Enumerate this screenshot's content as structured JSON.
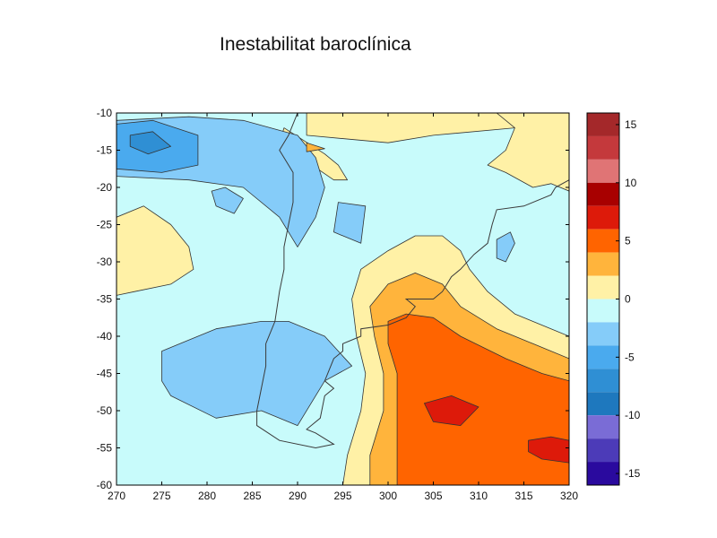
{
  "chart_data": {
    "type": "heatmap",
    "title": "Inestabilitat baroclínica",
    "xlabel": "",
    "ylabel": "",
    "xlim": [
      270,
      320
    ],
    "ylim": [
      -60,
      -10
    ],
    "xticks": [
      "270",
      "275",
      "280",
      "285",
      "290",
      "295",
      "300",
      "305",
      "310",
      "315",
      "320"
    ],
    "yticks": [
      "-10",
      "-15",
      "-20",
      "-25",
      "-30",
      "-35",
      "-40",
      "-45",
      "-50",
      "-55",
      "-60"
    ],
    "colorbar": {
      "ticks": [
        "15",
        "10",
        "5",
        "0",
        "-5",
        "-10",
        "-15"
      ],
      "tick_values": [
        15,
        10,
        5,
        0,
        -5,
        -10,
        -15
      ],
      "range": [
        -16,
        16
      ],
      "bands": [
        {
          "from": 14,
          "to": 16,
          "color": "#a4282a"
        },
        {
          "from": 12,
          "to": 14,
          "color": "#c4393c"
        },
        {
          "from": 10,
          "to": 12,
          "color": "#e07475"
        },
        {
          "from": 8,
          "to": 10,
          "color": "#a80000"
        },
        {
          "from": 6,
          "to": 8,
          "color": "#dd1a0a"
        },
        {
          "from": 4,
          "to": 6,
          "color": "#ff6400"
        },
        {
          "from": 2,
          "to": 4,
          "color": "#ffb43c"
        },
        {
          "from": 0,
          "to": 2,
          "color": "#fff1a6"
        },
        {
          "from": -2,
          "to": 0,
          "color": "#c8fbfb"
        },
        {
          "from": -4,
          "to": -2,
          "color": "#85ccf9"
        },
        {
          "from": -6,
          "to": -4,
          "color": "#4aaaee"
        },
        {
          "from": -8,
          "to": -6,
          "color": "#2f8fd4"
        },
        {
          "from": -10,
          "to": -8,
          "color": "#1e78be"
        },
        {
          "from": -12,
          "to": -10,
          "color": "#7a6cd6"
        },
        {
          "from": -14,
          "to": -12,
          "color": "#4c3bb8"
        },
        {
          "from": -16,
          "to": -14,
          "color": "#2a0a9e"
        }
      ]
    },
    "regions": [
      {
        "level": "-2 to 0",
        "color": "#c8fbfb",
        "points": [
          [
            270,
            -10
          ],
          [
            320,
            -10
          ],
          [
            320,
            -60
          ],
          [
            270,
            -60
          ]
        ]
      },
      {
        "level": "0 to 2",
        "color": "#fff1a6",
        "points": [
          [
            291,
            -10
          ],
          [
            313,
            -10
          ],
          [
            314,
            -12
          ],
          [
            305,
            -13
          ],
          [
            300,
            -14
          ],
          [
            291,
            -13
          ]
        ]
      },
      {
        "level": "0 to 2",
        "color": "#fff1a6",
        "points": [
          [
            312,
            -10
          ],
          [
            320,
            -10
          ],
          [
            320,
            -20.5
          ],
          [
            318,
            -19.5
          ],
          [
            316,
            -20
          ],
          [
            313,
            -18
          ],
          [
            311,
            -17
          ],
          [
            313,
            -15
          ],
          [
            314,
            -12
          ]
        ]
      },
      {
        "level": "0 to 2",
        "color": "#fff1a6",
        "points": [
          [
            270,
            -24
          ],
          [
            273,
            -22.5
          ],
          [
            276,
            -25
          ],
          [
            278,
            -28
          ],
          [
            278.5,
            -31
          ],
          [
            276,
            -33
          ],
          [
            272,
            -34
          ],
          [
            270,
            -34.5
          ]
        ]
      },
      {
        "level": "0 to 2",
        "color": "#fff1a6",
        "points": [
          [
            288.5,
            -12
          ],
          [
            293,
            -15.5
          ],
          [
            294.5,
            -17
          ],
          [
            295.5,
            -19
          ],
          [
            294,
            -19
          ],
          [
            291,
            -16.5
          ],
          [
            288,
            -14
          ]
        ]
      },
      {
        "level": "0 to 2",
        "color": "#fff1a6",
        "points": [
          [
            295,
            -60
          ],
          [
            295.5,
            -56
          ],
          [
            297,
            -50
          ],
          [
            297.5,
            -45
          ],
          [
            296.5,
            -40
          ],
          [
            296,
            -35
          ],
          [
            297,
            -31
          ],
          [
            300,
            -28.5
          ],
          [
            303,
            -26.5
          ],
          [
            306,
            -26.5
          ],
          [
            308,
            -28.5
          ],
          [
            309,
            -31
          ],
          [
            311,
            -34
          ],
          [
            314,
            -37
          ],
          [
            318,
            -39
          ],
          [
            320,
            -40
          ],
          [
            320,
            -60
          ]
        ]
      },
      {
        "level": "-4 to -2",
        "color": "#85ccf9",
        "points": [
          [
            270,
            -11
          ],
          [
            278,
            -10.5
          ],
          [
            284,
            -11
          ],
          [
            290,
            -13
          ],
          [
            292,
            -16
          ],
          [
            293,
            -20
          ],
          [
            292,
            -24
          ],
          [
            290,
            -28
          ],
          [
            288,
            -24
          ],
          [
            284,
            -20
          ],
          [
            278,
            -19
          ],
          [
            270,
            -18.5
          ]
        ]
      },
      {
        "level": "-4 to -2",
        "color": "#85ccf9",
        "points": [
          [
            275,
            -42
          ],
          [
            281,
            -39
          ],
          [
            286,
            -38
          ],
          [
            289,
            -38
          ],
          [
            293,
            -40
          ],
          [
            296,
            -44
          ],
          [
            293,
            -46
          ],
          [
            290,
            -52
          ],
          [
            286,
            -50
          ],
          [
            281,
            -51
          ],
          [
            276,
            -48
          ],
          [
            275,
            -46
          ]
        ]
      },
      {
        "level": "-4 to -2",
        "color": "#85ccf9",
        "points": [
          [
            294.5,
            -22
          ],
          [
            297.5,
            -22.5
          ],
          [
            297,
            -27.5
          ],
          [
            294,
            -26
          ]
        ]
      },
      {
        "level": "-4 to -2",
        "color": "#85ccf9",
        "points": [
          [
            280.5,
            -20.5
          ],
          [
            282,
            -20
          ],
          [
            284,
            -21.5
          ],
          [
            283,
            -23.5
          ],
          [
            281,
            -22.5
          ]
        ]
      },
      {
        "level": "-4 to -2",
        "color": "#85ccf9",
        "points": [
          [
            312,
            -27
          ],
          [
            313.5,
            -26
          ],
          [
            314,
            -27.5
          ],
          [
            313,
            -30
          ],
          [
            312,
            -29.5
          ]
        ]
      },
      {
        "level": "-6 to -4",
        "color": "#4aaaee",
        "points": [
          [
            270,
            -11.5
          ],
          [
            274,
            -11
          ],
          [
            279,
            -13
          ],
          [
            279,
            -17
          ],
          [
            275,
            -18
          ],
          [
            270,
            -17.5
          ]
        ]
      },
      {
        "level": "-8 to -6",
        "color": "#2f8fd4",
        "points": [
          [
            271.5,
            -13
          ],
          [
            274,
            -12.5
          ],
          [
            276,
            -14.5
          ],
          [
            273.5,
            -15.5
          ],
          [
            271.5,
            -14.5
          ]
        ]
      },
      {
        "level": "2 to 4",
        "color": "#ffb43c",
        "points": [
          [
            298,
            -60
          ],
          [
            298,
            -56
          ],
          [
            299.5,
            -50
          ],
          [
            299.5,
            -45
          ],
          [
            298.5,
            -40
          ],
          [
            298,
            -36
          ],
          [
            300,
            -33
          ],
          [
            303,
            -31.5
          ],
          [
            306,
            -33
          ],
          [
            308,
            -36
          ],
          [
            312,
            -39
          ],
          [
            316,
            -41
          ],
          [
            320,
            -43
          ],
          [
            320,
            -60
          ]
        ]
      },
      {
        "level": "2 to 4",
        "color": "#ffb43c",
        "points": [
          [
            291,
            -14
          ],
          [
            293,
            -14.8
          ],
          [
            291,
            -15.2
          ]
        ]
      },
      {
        "level": "4 to 6",
        "color": "#ff6400",
        "points": [
          [
            301,
            -60
          ],
          [
            301,
            -55
          ],
          [
            301,
            -45
          ],
          [
            300,
            -41
          ],
          [
            300,
            -38
          ],
          [
            302,
            -37
          ],
          [
            305,
            -37.5
          ],
          [
            308,
            -40
          ],
          [
            313,
            -43
          ],
          [
            317,
            -45
          ],
          [
            320,
            -46
          ],
          [
            320,
            -60
          ]
        ]
      },
      {
        "level": "6 to 8",
        "color": "#dd1a0a",
        "points": [
          [
            304,
            -49
          ],
          [
            307,
            -48
          ],
          [
            310,
            -49.5
          ],
          [
            308,
            -52
          ],
          [
            305,
            -51.5
          ]
        ]
      },
      {
        "level": "6 to 8",
        "color": "#dd1a0a",
        "points": [
          [
            315.5,
            -54
          ],
          [
            318,
            -53.5
          ],
          [
            320,
            -54
          ],
          [
            320,
            -57
          ],
          [
            317,
            -56.5
          ],
          [
            315.5,
            -55.5
          ]
        ]
      }
    ],
    "coastlines": [
      [
        [
          290,
          -10
        ],
        [
          289,
          -13
        ],
        [
          288,
          -15
        ],
        [
          289.5,
          -18
        ],
        [
          289.5,
          -22
        ],
        [
          289,
          -25
        ],
        [
          288.5,
          -28
        ],
        [
          288.5,
          -31
        ],
        [
          288,
          -34
        ],
        [
          287.5,
          -38
        ],
        [
          286.5,
          -41
        ],
        [
          286.5,
          -44
        ],
        [
          286,
          -47
        ],
        [
          285.5,
          -50
        ],
        [
          285.5,
          -52
        ],
        [
          288,
          -54
        ],
        [
          292,
          -55
        ],
        [
          294,
          -54.5
        ],
        [
          292,
          -53
        ],
        [
          291,
          -52.5
        ],
        [
          292.5,
          -51
        ],
        [
          293,
          -48
        ],
        [
          294,
          -47
        ],
        [
          293,
          -46
        ],
        [
          294,
          -43
        ],
        [
          295,
          -42
        ],
        [
          295,
          -41
        ],
        [
          297,
          -40
        ],
        [
          297,
          -39
        ],
        [
          300,
          -38.5
        ],
        [
          302,
          -37.5
        ],
        [
          303,
          -36
        ],
        [
          302,
          -35
        ],
        [
          305,
          -35
        ],
        [
          306,
          -34
        ],
        [
          307,
          -32
        ],
        [
          308,
          -31
        ],
        [
          309.5,
          -29
        ],
        [
          311,
          -27.5
        ],
        [
          311.5,
          -25
        ],
        [
          312,
          -23
        ],
        [
          315,
          -22.5
        ],
        [
          318,
          -21
        ],
        [
          318.5,
          -20
        ],
        [
          320,
          -19
        ]
      ]
    ]
  }
}
